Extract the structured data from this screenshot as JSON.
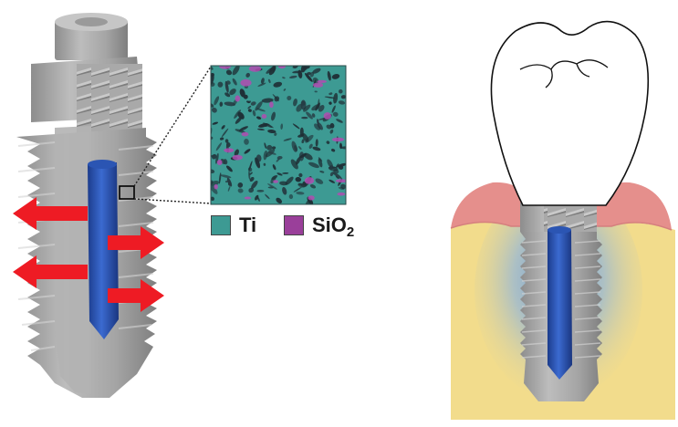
{
  "legend": {
    "items": [
      {
        "label": "Ti",
        "color": "#3d9a93"
      },
      {
        "label": "SiO",
        "subscript": "2",
        "color": "#9a3f9a"
      }
    ]
  },
  "colors": {
    "implant_body": "#a9a9a9",
    "implant_core": "#2a4fa8",
    "arrow": "#ee1b24",
    "gum": "#e58f8c",
    "bone": "#f2dc8c",
    "bone_halo": "#6f9fd9",
    "micro_background": "#3d9a93",
    "micro_particles": "#263a42"
  },
  "icons": {
    "release_arrows": "arrow-icon",
    "tooth_crown": "tooth-crown-icon"
  }
}
